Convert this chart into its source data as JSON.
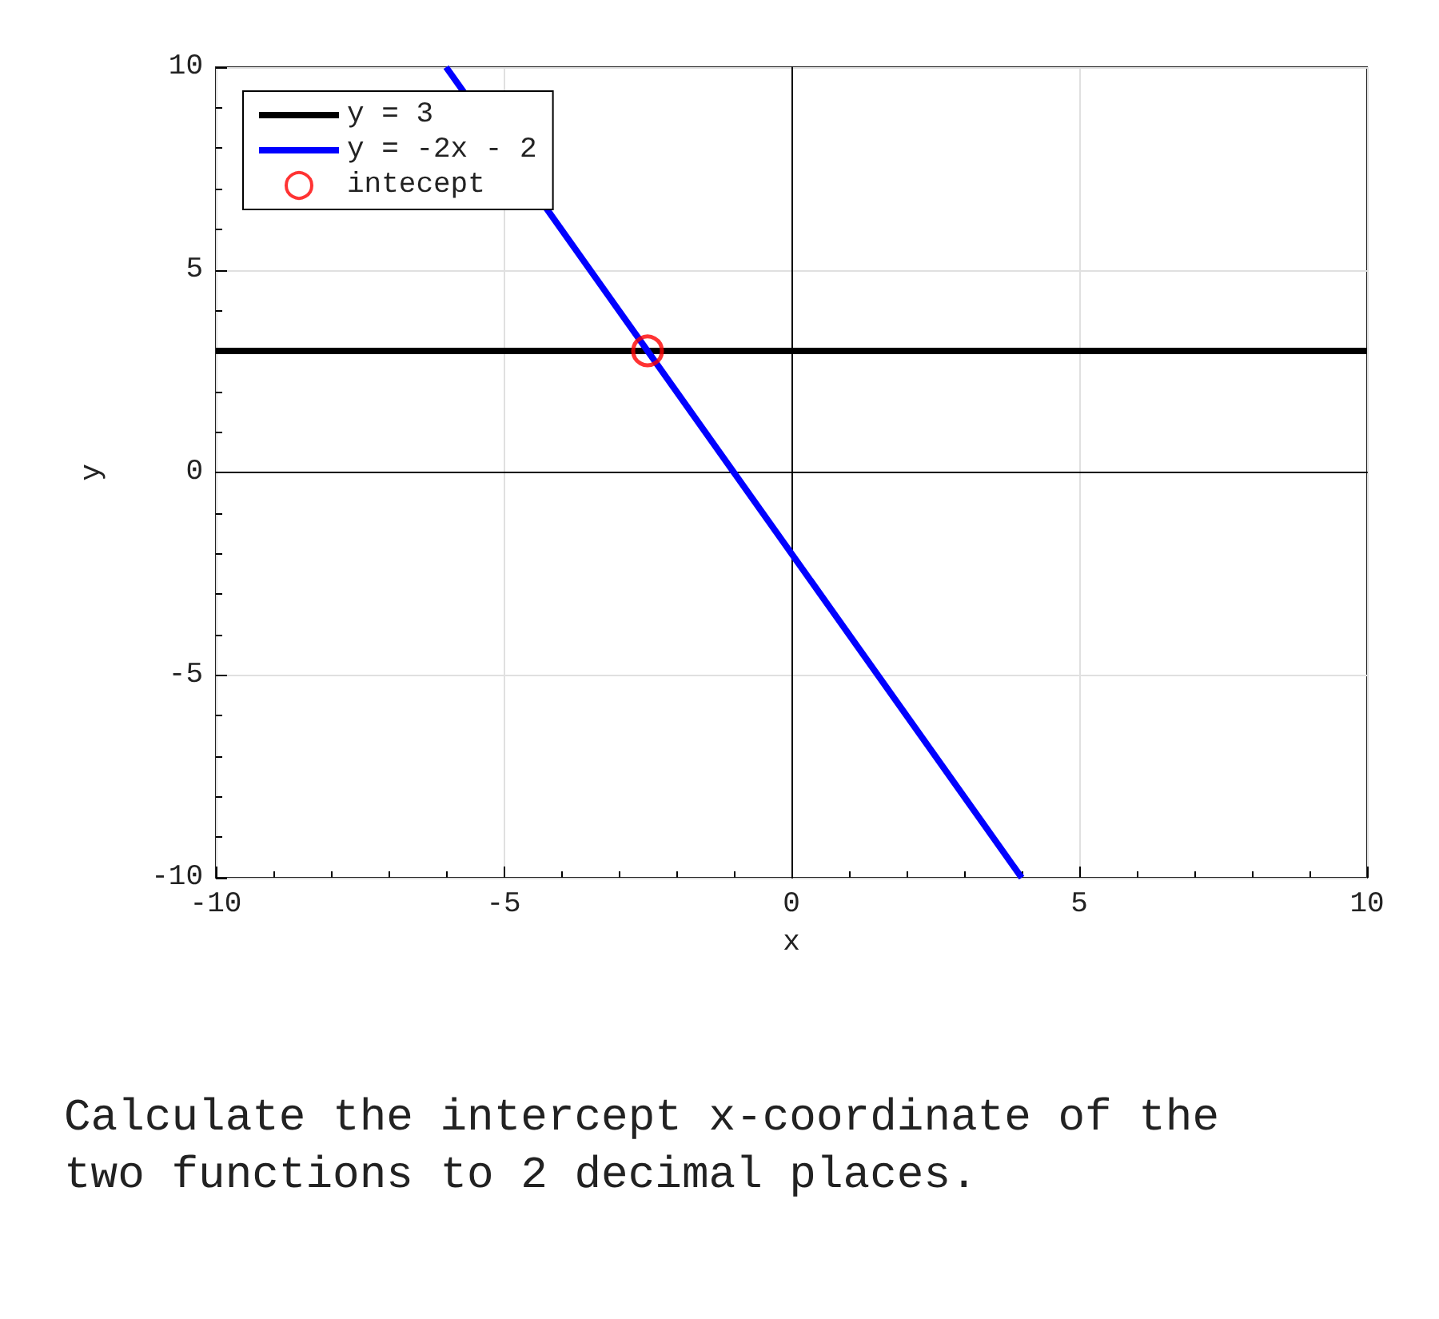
{
  "chart_data": {
    "type": "line",
    "xlabel": "x",
    "ylabel": "y",
    "xlim": [
      -10,
      10
    ],
    "xticks": [
      -10,
      -5,
      0,
      5,
      10
    ],
    "ylim": [
      -10,
      10
    ],
    "yticks": [
      -10,
      -5,
      0,
      5,
      10
    ],
    "grid": true,
    "legend": "top left",
    "series": [
      {
        "name": "y = 3",
        "color": "#000000",
        "marker": "none",
        "x": [
          -10,
          10
        ],
        "values": [
          3,
          3
        ]
      },
      {
        "name": "y = -2x - 2",
        "color": "#0000ff",
        "marker": "none",
        "x": [
          -6,
          4
        ],
        "values": [
          10,
          -10
        ]
      },
      {
        "name": "intecept",
        "type": "scatter",
        "color": "#ff0000",
        "marker": "circle",
        "x": [
          -2.5
        ],
        "values": [
          3
        ]
      }
    ],
    "annotations": [
      "Calculate the intercept x-coordinate of the two functions to 2 decimal places."
    ]
  }
}
